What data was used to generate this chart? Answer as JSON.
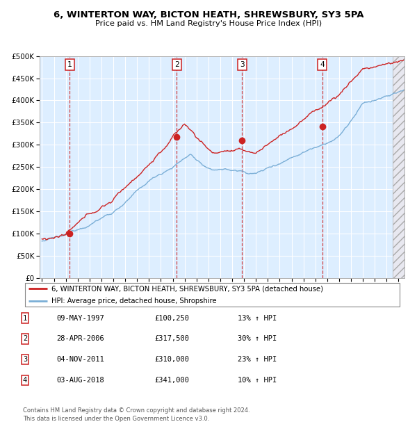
{
  "title_line1": "6, WINTERTON WAY, BICTON HEATH, SHREWSBURY, SY3 5PA",
  "title_line2": "Price paid vs. HM Land Registry's House Price Index (HPI)",
  "sale_prices": [
    100250,
    317500,
    310000,
    341000
  ],
  "sale_labels": [
    "1",
    "2",
    "3",
    "4"
  ],
  "sale_pct": [
    "13% ↑ HPI",
    "30% ↑ HPI",
    "23% ↑ HPI",
    "10% ↑ HPI"
  ],
  "sale_date_str": [
    "09-MAY-1997",
    "28-APR-2006",
    "04-NOV-2011",
    "03-AUG-2018"
  ],
  "sale_years": [
    1997.36,
    2006.32,
    2011.84,
    2018.58
  ],
  "xlim_start": 1994.8,
  "xlim_end": 2025.5,
  "ylim_min": 0,
  "ylim_max": 500000,
  "yticks": [
    0,
    50000,
    100000,
    150000,
    200000,
    250000,
    300000,
    350000,
    400000,
    450000,
    500000
  ],
  "hpi_color": "#7aaed6",
  "price_color": "#cc2222",
  "bg_color": "#ddeeff",
  "grid_color": "#ffffff",
  "legend_label_price": "6, WINTERTON WAY, BICTON HEATH, SHREWSBURY, SY3 5PA (detached house)",
  "legend_label_hpi": "HPI: Average price, detached house, Shropshire",
  "footer_line1": "Contains HM Land Registry data © Crown copyright and database right 2024.",
  "footer_line2": "This data is licensed under the Open Government Licence v3.0."
}
